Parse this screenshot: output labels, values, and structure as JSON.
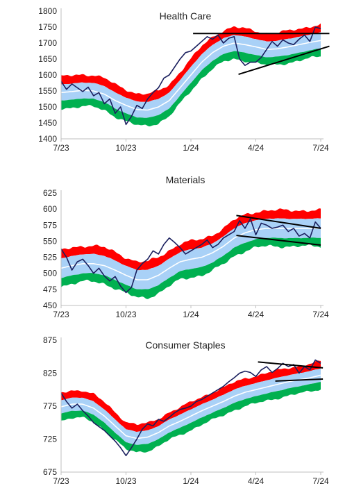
{
  "palette": {
    "band_red": "#ff0000",
    "band_blue": "#a9d1f7",
    "band_green": "#00b050",
    "midline": "#ffffff",
    "price": "#1a1f5e",
    "trendline": "#000000",
    "axis": "#bfbfbf"
  },
  "chart_data": [
    {
      "type": "line",
      "title": "Health Care",
      "x_tick_labels": [
        "7/23",
        "10/23",
        "1/24",
        "4/24",
        "7/24"
      ],
      "x_ticks": [
        0,
        3,
        6,
        9,
        12
      ],
      "x_range": [
        0,
        12
      ],
      "y_ticks": [
        1400,
        1450,
        1500,
        1550,
        1600,
        1650,
        1700,
        1750,
        1800
      ],
      "ylim": [
        1400,
        1800
      ],
      "grid": false,
      "legend": "none",
      "band_center": {
        "x": [
          0,
          0.5,
          1,
          1.5,
          2,
          2.5,
          3,
          3.5,
          4,
          4.5,
          5,
          5.5,
          6,
          6.5,
          7,
          7.5,
          8,
          8.5,
          9,
          9.5,
          10,
          10.5,
          11,
          11.5,
          12
        ],
        "y": [
          1545,
          1548,
          1552,
          1550,
          1540,
          1520,
          1505,
          1492,
          1490,
          1500,
          1520,
          1560,
          1600,
          1640,
          1670,
          1690,
          1700,
          1695,
          1688,
          1680,
          1682,
          1688,
          1695,
          1702,
          1708
        ]
      },
      "band_widths": {
        "inner": 25,
        "outer": 50
      },
      "series": [
        {
          "x": [
            0,
            0.25,
            0.5,
            0.75,
            1,
            1.25,
            1.5,
            1.75,
            2,
            2.25,
            2.5,
            2.75,
            3,
            3.25,
            3.5,
            3.75,
            4,
            4.25,
            4.5,
            4.75,
            5,
            5.25,
            5.5,
            5.75,
            6,
            6.25,
            6.5,
            6.75,
            7,
            7.25,
            7.5,
            7.75,
            8,
            8.25,
            8.5,
            8.75,
            9,
            9.25,
            9.5,
            9.75,
            10,
            10.25,
            10.5,
            10.75,
            11,
            11.25,
            11.5,
            11.75,
            12
          ],
          "y": [
            1580,
            1555,
            1572,
            1560,
            1548,
            1562,
            1535,
            1545,
            1510,
            1525,
            1480,
            1500,
            1445,
            1470,
            1505,
            1495,
            1525,
            1545,
            1560,
            1590,
            1600,
            1625,
            1650,
            1670,
            1675,
            1690,
            1705,
            1720,
            1712,
            1725,
            1700,
            1715,
            1720,
            1650,
            1630,
            1640,
            1640,
            1655,
            1680,
            1705,
            1690,
            1710,
            1700,
            1695,
            1712,
            1725,
            1705,
            1750,
            1745
          ]
        }
      ],
      "trendlines": [
        {
          "x": [
            6.1,
            12.4
          ],
          "y": [
            1730,
            1730
          ]
        },
        {
          "x": [
            8.2,
            12.4
          ],
          "y": [
            1602,
            1690
          ]
        }
      ]
    },
    {
      "type": "line",
      "title": "Materials",
      "x_tick_labels": [
        "7/23",
        "10/23",
        "1/24",
        "4/24",
        "7/24"
      ],
      "x_ticks": [
        0,
        3,
        6,
        9,
        12
      ],
      "x_range": [
        0,
        12
      ],
      "y_ticks": [
        450,
        475,
        500,
        525,
        550,
        575,
        600,
        625
      ],
      "ylim": [
        450,
        625
      ],
      "grid": false,
      "legend": "none",
      "band_center": {
        "x": [
          0,
          0.5,
          1,
          1.5,
          2,
          2.5,
          3,
          3.5,
          4,
          4.5,
          5,
          5.5,
          6,
          6.5,
          7,
          7.5,
          8,
          8.5,
          9,
          9.5,
          10,
          10.5,
          11,
          11.5,
          12
        ],
        "y": [
          508,
          512,
          515,
          515,
          512,
          505,
          497,
          490,
          490,
          497,
          508,
          518,
          522,
          525,
          532,
          542,
          555,
          563,
          568,
          570,
          570,
          570,
          570,
          570,
          570
        ]
      },
      "band_widths": {
        "inner": 15,
        "outer": 28
      },
      "series": [
        {
          "x": [
            0,
            0.25,
            0.5,
            0.75,
            1,
            1.25,
            1.5,
            1.75,
            2,
            2.25,
            2.5,
            2.75,
            3,
            3.25,
            3.5,
            3.75,
            4,
            4.25,
            4.5,
            4.75,
            5,
            5.25,
            5.5,
            5.75,
            6,
            6.25,
            6.5,
            6.75,
            7,
            7.25,
            7.5,
            7.75,
            8,
            8.25,
            8.5,
            8.75,
            9,
            9.25,
            9.5,
            9.75,
            10,
            10.25,
            10.5,
            10.75,
            11,
            11.25,
            11.5,
            11.75,
            12
          ],
          "y": [
            538,
            525,
            505,
            518,
            522,
            512,
            500,
            508,
            496,
            488,
            495,
            480,
            470,
            478,
            505,
            515,
            522,
            535,
            530,
            545,
            555,
            548,
            540,
            530,
            535,
            540,
            545,
            552,
            540,
            545,
            555,
            560,
            565,
            582,
            570,
            585,
            560,
            578,
            575,
            570,
            572,
            575,
            565,
            570,
            558,
            562,
            555,
            580,
            570
          ]
        }
      ],
      "trendlines": [
        {
          "x": [
            8.1,
            12.0
          ],
          "y": [
            590,
            570
          ]
        },
        {
          "x": [
            8.1,
            12.0
          ],
          "y": [
            559,
            544
          ]
        }
      ]
    },
    {
      "type": "line",
      "title": "Consumer Staples",
      "x_tick_labels": [
        "7/23",
        "10/23",
        "1/24",
        "4/24",
        "7/24"
      ],
      "x_ticks": [
        0,
        3,
        6,
        9,
        12
      ],
      "x_range": [
        0,
        12
      ],
      "y_ticks": [
        675,
        725,
        775,
        825,
        875
      ],
      "ylim": [
        675,
        875
      ],
      "grid": false,
      "legend": "none",
      "band_center": {
        "x": [
          0,
          0.5,
          1,
          1.5,
          2,
          2.5,
          3,
          3.5,
          4,
          4.5,
          5,
          5.5,
          6,
          6.5,
          7,
          7.5,
          8,
          8.5,
          9,
          9.5,
          10,
          10.5,
          11,
          11.5,
          12
        ],
        "y": [
          774,
          778,
          778,
          772,
          760,
          745,
          730,
          726,
          728,
          735,
          745,
          752,
          760,
          768,
          775,
          782,
          790,
          796,
          800,
          804,
          808,
          812,
          815,
          818,
          822
        ]
      },
      "band_widths": {
        "inner": 10,
        "outer": 21
      },
      "series": [
        {
          "x": [
            0,
            0.25,
            0.5,
            0.75,
            1,
            1.25,
            1.5,
            1.75,
            2,
            2.25,
            2.5,
            2.75,
            3,
            3.25,
            3.5,
            3.75,
            4,
            4.25,
            4.5,
            4.75,
            5,
            5.25,
            5.5,
            5.75,
            6,
            6.25,
            6.5,
            6.75,
            7,
            7.25,
            7.5,
            7.75,
            8,
            8.25,
            8.5,
            8.75,
            9,
            9.25,
            9.5,
            9.75,
            10,
            10.25,
            10.5,
            10.75,
            11,
            11.25,
            11.5,
            11.75,
            12
          ],
          "y": [
            795,
            782,
            772,
            778,
            768,
            760,
            750,
            744,
            738,
            730,
            722,
            712,
            700,
            712,
            725,
            740,
            748,
            745,
            755,
            752,
            758,
            765,
            770,
            772,
            775,
            782,
            785,
            790,
            795,
            800,
            805,
            812,
            818,
            825,
            828,
            826,
            820,
            830,
            835,
            826,
            832,
            840,
            835,
            838,
            825,
            835,
            830,
            845,
            840
          ]
        }
      ],
      "trendlines": [
        {
          "x": [
            9.1,
            12.1
          ],
          "y": [
            842,
            833
          ]
        },
        {
          "x": [
            9.9,
            12.1
          ],
          "y": [
            813,
            816
          ]
        }
      ]
    }
  ]
}
